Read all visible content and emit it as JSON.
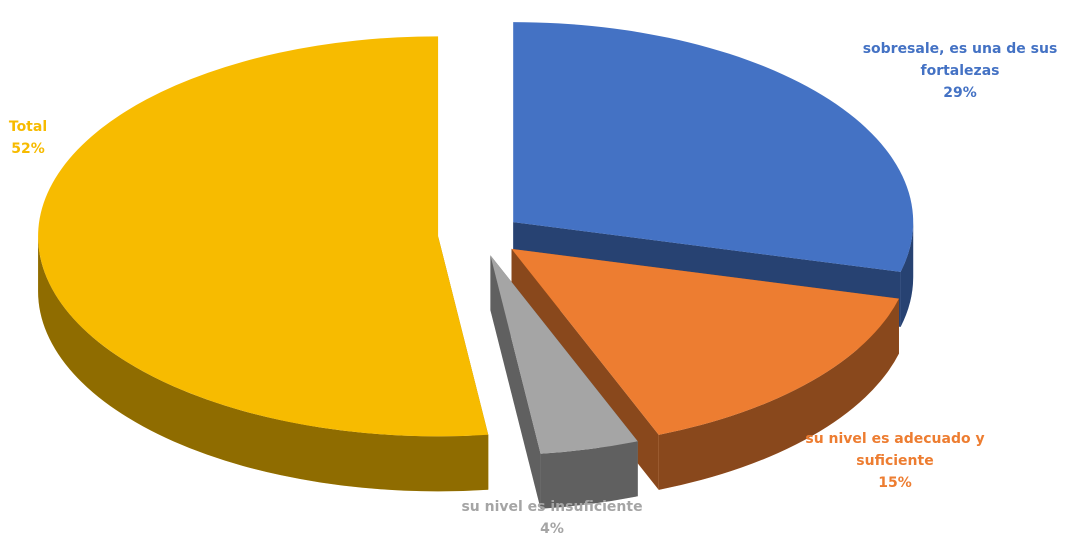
{
  "chart_data": {
    "type": "pie3d",
    "categories": [
      "sobresale, es una de sus fortalezas",
      "su nivel es adecuado y suficiente",
      "su nivel es insuficiente",
      "Total"
    ],
    "values": [
      29,
      15,
      4,
      52
    ],
    "value_labels": [
      "29%",
      "15%",
      "4%",
      "52%"
    ],
    "colors": [
      "#4472c4",
      "#ed7d31",
      "#a5a5a5",
      "#f7bb00"
    ]
  }
}
